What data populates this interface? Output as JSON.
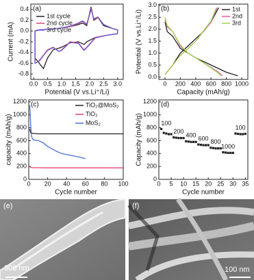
{
  "chart_data": [
    {
      "type": "line",
      "panel_label": "(a)",
      "xlabel": "Potential (V vs.Li⁺/Li)",
      "ylabel": "Current (mA)",
      "xlim": [
        -0.1,
        3.2
      ],
      "ylim": [
        -0.9,
        0.5
      ],
      "xticks": [
        {
          "value": 0,
          "label": "0.0"
        },
        0.5,
        {
          "value": 1,
          "label": "1.0"
        },
        1.5,
        {
          "value": 2,
          "label": "2.0"
        },
        2.5,
        {
          "value": 3,
          "label": "3.0"
        }
      ],
      "yticks": [
        -0.8,
        -0.6,
        -0.4,
        -0.2,
        {
          "value": 0,
          "label": "0.0"
        },
        0.2,
        0.4
      ],
      "legend": "upper left",
      "series": [
        {
          "name": "1st cycle",
          "color": "#222222",
          "x": [
            3.0,
            2.6,
            2.2,
            1.9,
            1.8,
            1.6,
            1.3,
            1.0,
            0.9,
            0.7,
            0.5,
            0.35,
            0.2,
            0.05,
            0.05,
            0.2,
            0.5,
            0.9,
            1.3,
            1.6,
            1.75,
            1.9,
            2.05,
            2.15,
            2.3,
            2.5,
            2.8,
            3.0,
            3.0
          ],
          "values": [
            -0.05,
            -0.08,
            -0.12,
            -0.2,
            -0.25,
            -0.2,
            -0.22,
            -0.3,
            -0.32,
            -0.35,
            -0.5,
            -0.7,
            -0.6,
            -0.5,
            0.0,
            0.02,
            0.03,
            0.05,
            0.08,
            0.12,
            0.15,
            0.1,
            0.45,
            0.2,
            0.25,
            0.1,
            0.05,
            0.02,
            -0.05
          ]
        },
        {
          "name": "2nd cycle",
          "color": "#e0457b",
          "x": [
            3.0,
            2.6,
            2.2,
            1.9,
            1.8,
            1.6,
            1.3,
            1.0,
            0.9,
            0.7,
            0.5,
            0.35,
            0.2,
            0.05,
            0.05,
            0.2,
            0.5,
            0.9,
            1.3,
            1.6,
            1.75,
            1.9,
            2.05,
            2.15,
            2.3,
            2.5,
            2.8,
            3.0,
            3.0
          ],
          "values": [
            -0.05,
            -0.08,
            -0.12,
            -0.3,
            -0.35,
            -0.22,
            -0.2,
            -0.35,
            -0.38,
            -0.3,
            -0.35,
            -0.45,
            -0.55,
            -0.6,
            0.0,
            0.02,
            0.03,
            0.05,
            0.08,
            0.14,
            0.18,
            0.12,
            0.42,
            0.22,
            0.25,
            0.12,
            0.05,
            0.02,
            -0.05
          ]
        },
        {
          "name": "3rd cycle",
          "color": "#6a5acd",
          "x": [
            3.0,
            2.6,
            2.2,
            1.9,
            1.8,
            1.6,
            1.3,
            1.0,
            0.9,
            0.7,
            0.5,
            0.35,
            0.2,
            0.05,
            0.05,
            0.2,
            0.5,
            0.9,
            1.3,
            1.6,
            1.75,
            1.9,
            2.05,
            2.15,
            2.3,
            2.5,
            2.8,
            3.0,
            3.0
          ],
          "values": [
            -0.05,
            -0.08,
            -0.13,
            -0.31,
            -0.36,
            -0.23,
            -0.21,
            -0.36,
            -0.38,
            -0.31,
            -0.36,
            -0.46,
            -0.56,
            -0.6,
            0.0,
            0.02,
            0.03,
            0.05,
            0.09,
            0.15,
            0.19,
            0.13,
            0.4,
            0.23,
            0.26,
            0.12,
            0.05,
            0.02,
            -0.05
          ]
        }
      ]
    },
    {
      "type": "line",
      "panel_label": "(b)",
      "xlabel": "Capacity (mAh/g)",
      "ylabel": "Potential (V vs.Li⁺/Li)",
      "xlim": [
        -80,
        1080
      ],
      "ylim": [
        -0.1,
        3.05
      ],
      "xticks": [
        0,
        200,
        400,
        600,
        800,
        1000
      ],
      "yticks": [
        {
          "value": 0,
          "label": "0.0"
        },
        0.5,
        {
          "value": 1,
          "label": "1.0"
        },
        1.5,
        {
          "value": 2,
          "label": "2.0"
        },
        2.5,
        {
          "value": 3,
          "label": "3.0"
        }
      ],
      "legend": "upper right",
      "series": [
        {
          "name": "1st",
          "color": "#222222",
          "x": [
            0,
            30,
            100,
            200,
            400,
            600,
            800,
            950,
            null,
            0,
            100,
            200,
            300,
            400,
            500,
            600,
            700
          ],
          "values": [
            2.3,
            1.9,
            1.7,
            1.2,
            0.8,
            0.5,
            0.2,
            0.05,
            null,
            0.1,
            0.5,
            1.0,
            1.3,
            1.6,
            1.9,
            2.3,
            2.9
          ]
        },
        {
          "name": "2nd",
          "color": "#e85a9a",
          "x": [
            0,
            30,
            100,
            200,
            300,
            500,
            700,
            750,
            null,
            0,
            100,
            200,
            400,
            600,
            680
          ],
          "values": [
            2.4,
            2.1,
            1.9,
            1.3,
            1.0,
            0.6,
            0.2,
            0.05,
            null,
            0.1,
            0.5,
            0.9,
            1.5,
            2.3,
            2.9
          ]
        },
        {
          "name": "3rd",
          "color": "#9ad94a",
          "x": [
            0,
            30,
            100,
            200,
            300,
            500,
            680,
            730,
            null,
            0,
            100,
            200,
            400,
            600,
            670
          ],
          "values": [
            2.5,
            2.15,
            1.9,
            1.35,
            1.0,
            0.6,
            0.2,
            0.05,
            null,
            0.1,
            0.5,
            0.9,
            1.5,
            2.35,
            2.9
          ]
        }
      ]
    },
    {
      "type": "line",
      "panel_label": "(c)",
      "xlabel": "Cycle number",
      "ylabel": "capacity (mAh/g)",
      "xlim": [
        0,
        100
      ],
      "ylim": [
        0,
        1230
      ],
      "xticks": [
        0,
        20,
        40,
        60,
        80,
        100
      ],
      "yticks": [
        0,
        200,
        400,
        600,
        800,
        1000,
        1200
      ],
      "legend": "upper right",
      "series": [
        {
          "name": "TiO₂@MoS₂",
          "color": "#222222",
          "x": [
            1,
            2,
            5,
            10,
            20,
            30,
            40,
            50,
            60,
            70,
            80,
            90,
            100
          ],
          "values": [
            780,
            720,
            710,
            705,
            705,
            705,
            705,
            705,
            705,
            705,
            705,
            705,
            705
          ]
        },
        {
          "name": "TiO₂",
          "color": "#e83c6a",
          "x": [
            1,
            2,
            5,
            10,
            20,
            30,
            40,
            50,
            60,
            70,
            80,
            90,
            100
          ],
          "values": [
            200,
            185,
            180,
            180,
            178,
            178,
            178,
            178,
            178,
            178,
            178,
            178,
            178
          ]
        },
        {
          "name": "MoS₂",
          "color": "#4a6fd6",
          "x": [
            1,
            2,
            3,
            5,
            10,
            15,
            20,
            25,
            30,
            35,
            40,
            45,
            50,
            55,
            60
          ],
          "values": [
            1150,
            850,
            660,
            610,
            600,
            570,
            510,
            470,
            430,
            400,
            385,
            370,
            355,
            340,
            320
          ]
        }
      ]
    },
    {
      "type": "scatter",
      "panel_label": "(d)",
      "xlabel": "Cycle number",
      "ylabel": "Capacity (mAh/g)",
      "xlim": [
        0,
        36
      ],
      "ylim": [
        0,
        1230
      ],
      "xticks": [
        0,
        5,
        10,
        15,
        20,
        25,
        30,
        35
      ],
      "yticks": [
        0,
        200,
        400,
        600,
        800,
        1000,
        1200
      ],
      "rate_labels": [
        "100",
        "200",
        "400",
        "600",
        "800",
        "1000",
        "100"
      ],
      "series": [
        {
          "color": "#222222",
          "x": [
            1,
            2,
            3,
            4,
            5,
            6,
            7,
            8,
            9,
            10,
            11,
            12,
            13,
            14,
            15,
            16,
            17,
            18,
            19,
            20,
            21,
            22,
            23,
            24,
            25,
            26,
            27,
            28,
            29,
            30,
            31,
            32,
            33,
            34,
            35
          ],
          "values": [
            780,
            720,
            710,
            700,
            700,
            650,
            645,
            640,
            640,
            640,
            590,
            585,
            580,
            580,
            580,
            540,
            535,
            530,
            530,
            530,
            490,
            485,
            480,
            480,
            480,
            420,
            415,
            410,
            410,
            410,
            710,
            705,
            700,
            700,
            705
          ]
        }
      ]
    }
  ],
  "images": [
    {
      "label": "(e)",
      "scale_bar": "300 nm"
    },
    {
      "label": "(f)",
      "scale_bar": "100 nm"
    }
  ]
}
